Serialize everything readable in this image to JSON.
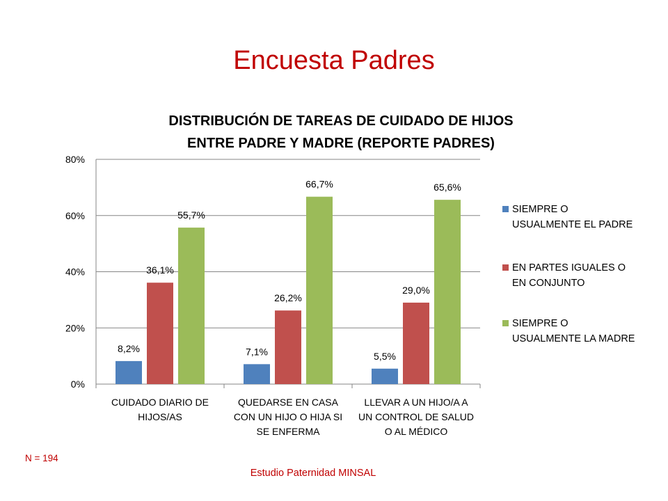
{
  "slide": {
    "title": "Encuesta Padres",
    "sample_note": "N = 194",
    "source": "Estudio Paternidad MINSAL"
  },
  "chart_data": {
    "type": "bar",
    "title_lines": [
      "DISTRIBUCIÓN DE TAREAS DE CUIDADO DE HIJOS",
      "ENTRE PADRE Y MADRE (REPORTE PADRES)"
    ],
    "categories": [
      [
        "CUIDADO DIARIO DE",
        "HIJOS/AS"
      ],
      [
        "QUEDARSE EN CASA",
        "CON UN HIJO O HIJA SI",
        "SE ENFERMA"
      ],
      [
        "LLEVAR A UN HIJO/A A",
        "UN CONTROL DE SALUD",
        "O AL MÉDICO"
      ]
    ],
    "series": [
      {
        "name": "SIEMPRE O USUALMENTE EL PADRE",
        "legend_lines": [
          "SIEMPRE O",
          "USUALMENTE EL PADRE"
        ],
        "color": "#4f81bd",
        "values": [
          8.2,
          7.1,
          5.5
        ],
        "labels": [
          "8,2%",
          "7,1%",
          "5,5%"
        ]
      },
      {
        "name": "EN PARTES IGUALES O EN CONJUNTO",
        "legend_lines": [
          "EN PARTES IGUALES O",
          "EN CONJUNTO"
        ],
        "color": "#c0504d",
        "values": [
          36.1,
          26.2,
          29.0
        ],
        "labels": [
          "36,1%",
          "26,2%",
          "29,0%"
        ]
      },
      {
        "name": "SIEMPRE O USUALMENTE LA MADRE",
        "legend_lines": [
          "SIEMPRE O",
          "USUALMENTE LA MADRE"
        ],
        "color": "#9bbb59",
        "values": [
          55.7,
          66.7,
          65.6
        ],
        "labels": [
          "55,7%",
          "66,7%",
          "65,6%"
        ]
      }
    ],
    "ylim": [
      0,
      80
    ],
    "yticks": [
      0,
      20,
      40,
      60,
      80
    ],
    "ytick_labels": [
      "0%",
      "20%",
      "40%",
      "60%",
      "80%"
    ],
    "grid": true,
    "legend_position": "right"
  }
}
